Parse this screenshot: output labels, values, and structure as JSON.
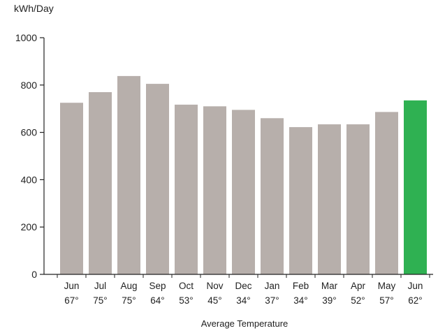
{
  "chart_data": {
    "type": "bar",
    "ylabel": "kWh/Day",
    "xlabel": "Average Temperature",
    "ylim": [
      0,
      1000
    ],
    "yticks": [
      0,
      200,
      400,
      600,
      800,
      1000
    ],
    "grid": false,
    "categories": [
      "Jun",
      "Jul",
      "Aug",
      "Sep",
      "Oct",
      "Nov",
      "Dec",
      "Jan",
      "Feb",
      "Mar",
      "Apr",
      "May",
      "Jun"
    ],
    "temperatures": [
      "67°",
      "75°",
      "75°",
      "64°",
      "53°",
      "45°",
      "34°",
      "37°",
      "34°",
      "39°",
      "52°",
      "57°",
      "62°"
    ],
    "values": [
      725,
      770,
      838,
      805,
      717,
      710,
      695,
      660,
      622,
      634,
      634,
      686,
      735
    ],
    "colors": {
      "bar": "#b7afab",
      "highlight": "#2fb152",
      "axis": "#222222"
    },
    "highlight_index": 12
  }
}
